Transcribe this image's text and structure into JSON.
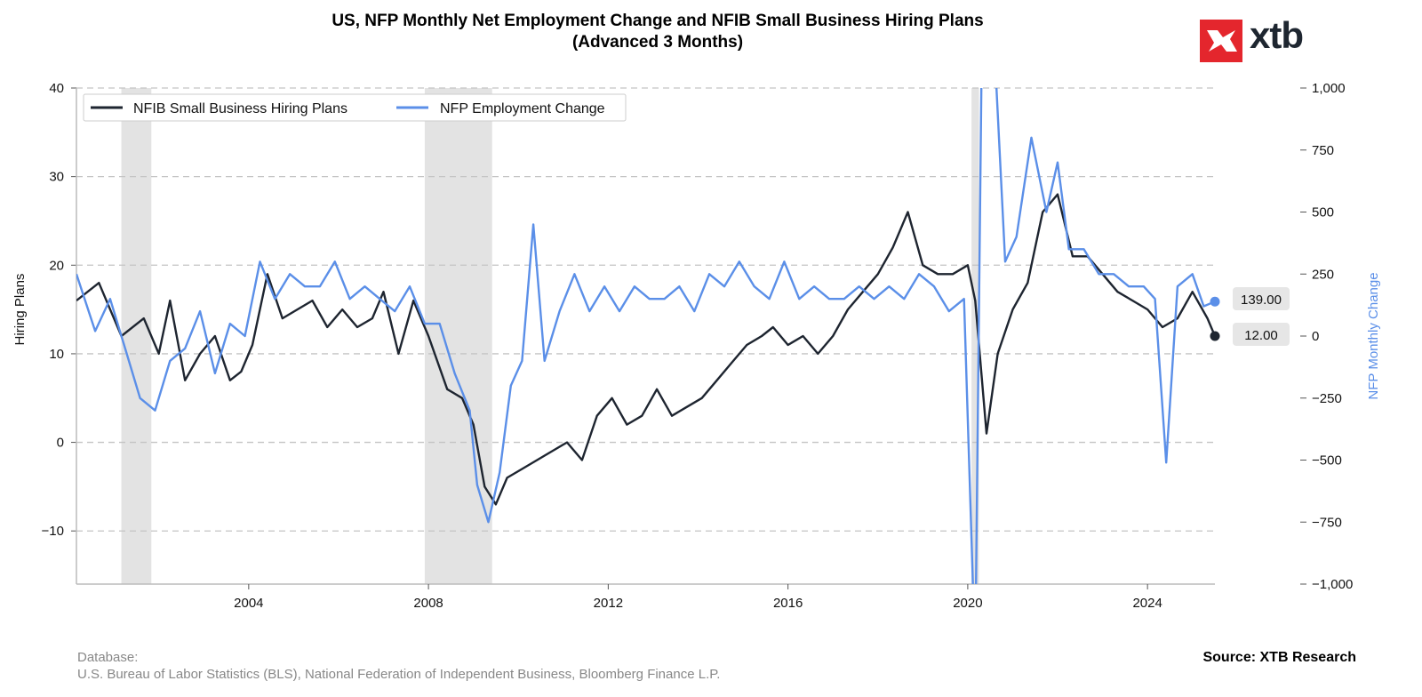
{
  "title": {
    "line1": "US, NFP Monthly Net Employment Change and NFIB Small Business Hiring Plans",
    "line2": "(Advanced 3 Months)"
  },
  "logo": {
    "text": "xtb",
    "color": "#e4262d"
  },
  "footer": {
    "database_label": "Database:",
    "database_sources": "U.S. Bureau of Labor Statistics (BLS), National Federation of Independent Business, Bloomberg Finance L.P.",
    "source": "Source: XTB Research"
  },
  "chart_data": {
    "type": "line",
    "x_range": [
      "2000-03",
      "2025-07"
    ],
    "x_ticks": [
      "2004",
      "2008",
      "2012",
      "2016",
      "2020",
      "2024"
    ],
    "left_axis": {
      "label": "Hiring Plans",
      "ylim": [
        -16,
        40
      ],
      "ticks": [
        "−10",
        "0",
        "10",
        "20",
        "30",
        "40"
      ]
    },
    "right_axis": {
      "label": "NFP Monthly Change",
      "ylim": [
        -1000,
        1000
      ],
      "ticks": [
        "−1,000",
        "−750",
        "−500",
        "−250",
        "0",
        "250",
        "500",
        "750",
        "1,000"
      ]
    },
    "grid": "horizontal dashed",
    "legend_position": "top-left",
    "shaded_periods": [
      [
        "2001-03",
        "2001-11"
      ],
      [
        "2007-12",
        "2009-06"
      ],
      [
        "2020-02",
        "2020-04"
      ]
    ],
    "series": [
      {
        "name": "NFIB Small Business Hiring Plans",
        "axis": "left",
        "color": "#1e2530",
        "last_value_label": "12.00",
        "points": [
          [
            "2000-03",
            16
          ],
          [
            "2000-09",
            18
          ],
          [
            "2001-03",
            12
          ],
          [
            "2001-09",
            14
          ],
          [
            "2002-01",
            10
          ],
          [
            "2002-04",
            16
          ],
          [
            "2002-08",
            7
          ],
          [
            "2002-12",
            10
          ],
          [
            "2003-04",
            12
          ],
          [
            "2003-08",
            7
          ],
          [
            "2003-11",
            8
          ],
          [
            "2004-02",
            11
          ],
          [
            "2004-06",
            19
          ],
          [
            "2004-10",
            14
          ],
          [
            "2005-02",
            15
          ],
          [
            "2005-06",
            16
          ],
          [
            "2005-10",
            13
          ],
          [
            "2006-02",
            15
          ],
          [
            "2006-06",
            13
          ],
          [
            "2006-10",
            14
          ],
          [
            "2007-01",
            17
          ],
          [
            "2007-05",
            10
          ],
          [
            "2007-09",
            16
          ],
          [
            "2008-01",
            12
          ],
          [
            "2008-06",
            6
          ],
          [
            "2008-10",
            5
          ],
          [
            "2009-01",
            2
          ],
          [
            "2009-04",
            -5
          ],
          [
            "2009-07",
            -7
          ],
          [
            "2009-10",
            -4
          ],
          [
            "2010-02",
            -3
          ],
          [
            "2010-06",
            -2
          ],
          [
            "2010-10",
            -1
          ],
          [
            "2011-02",
            0
          ],
          [
            "2011-06",
            -2
          ],
          [
            "2011-10",
            3
          ],
          [
            "2012-02",
            5
          ],
          [
            "2012-06",
            2
          ],
          [
            "2012-10",
            3
          ],
          [
            "2013-02",
            6
          ],
          [
            "2013-06",
            3
          ],
          [
            "2013-10",
            4
          ],
          [
            "2014-02",
            5
          ],
          [
            "2014-06",
            7
          ],
          [
            "2014-10",
            9
          ],
          [
            "2015-02",
            11
          ],
          [
            "2015-06",
            12
          ],
          [
            "2015-09",
            13
          ],
          [
            "2016-01",
            11
          ],
          [
            "2016-05",
            12
          ],
          [
            "2016-09",
            10
          ],
          [
            "2017-01",
            12
          ],
          [
            "2017-05",
            15
          ],
          [
            "2017-09",
            17
          ],
          [
            "2018-01",
            19
          ],
          [
            "2018-05",
            22
          ],
          [
            "2018-09",
            26
          ],
          [
            "2019-01",
            20
          ],
          [
            "2019-05",
            19
          ],
          [
            "2019-09",
            19
          ],
          [
            "2020-01",
            20
          ],
          [
            "2020-03",
            16
          ],
          [
            "2020-06",
            1
          ],
          [
            "2020-09",
            10
          ],
          [
            "2021-01",
            15
          ],
          [
            "2021-05",
            18
          ],
          [
            "2021-09",
            26
          ],
          [
            "2022-01",
            28
          ],
          [
            "2022-05",
            21
          ],
          [
            "2022-09",
            21
          ],
          [
            "2023-01",
            19
          ],
          [
            "2023-05",
            17
          ],
          [
            "2023-09",
            16
          ],
          [
            "2024-01",
            15
          ],
          [
            "2024-05",
            13
          ],
          [
            "2024-09",
            14
          ],
          [
            "2025-01",
            17
          ],
          [
            "2025-05",
            14
          ],
          [
            "2025-07",
            12
          ]
        ]
      },
      {
        "name": "NFP Employment Change",
        "axis": "right",
        "color": "#5b8fe8",
        "last_value_label": "139.00",
        "points": [
          [
            "2000-03",
            250
          ],
          [
            "2000-08",
            20
          ],
          [
            "2000-12",
            150
          ],
          [
            "2001-04",
            -50
          ],
          [
            "2001-08",
            -250
          ],
          [
            "2001-12",
            -300
          ],
          [
            "2002-04",
            -100
          ],
          [
            "2002-08",
            -50
          ],
          [
            "2002-12",
            100
          ],
          [
            "2003-04",
            -150
          ],
          [
            "2003-08",
            50
          ],
          [
            "2003-12",
            0
          ],
          [
            "2004-04",
            300
          ],
          [
            "2004-08",
            150
          ],
          [
            "2004-12",
            250
          ],
          [
            "2005-04",
            200
          ],
          [
            "2005-08",
            200
          ],
          [
            "2005-12",
            300
          ],
          [
            "2006-04",
            150
          ],
          [
            "2006-08",
            200
          ],
          [
            "2006-12",
            150
          ],
          [
            "2007-04",
            100
          ],
          [
            "2007-08",
            200
          ],
          [
            "2007-12",
            50
          ],
          [
            "2008-04",
            50
          ],
          [
            "2008-08",
            -150
          ],
          [
            "2008-12",
            -300
          ],
          [
            "2009-02",
            -600
          ],
          [
            "2009-05",
            -750
          ],
          [
            "2009-08",
            -550
          ],
          [
            "2009-11",
            -200
          ],
          [
            "2010-02",
            -100
          ],
          [
            "2010-05",
            450
          ],
          [
            "2010-08",
            -100
          ],
          [
            "2010-12",
            100
          ],
          [
            "2011-04",
            250
          ],
          [
            "2011-08",
            100
          ],
          [
            "2011-12",
            200
          ],
          [
            "2012-04",
            100
          ],
          [
            "2012-08",
            200
          ],
          [
            "2012-12",
            150
          ],
          [
            "2013-04",
            150
          ],
          [
            "2013-08",
            200
          ],
          [
            "2013-12",
            100
          ],
          [
            "2014-04",
            250
          ],
          [
            "2014-08",
            200
          ],
          [
            "2014-12",
            300
          ],
          [
            "2015-04",
            200
          ],
          [
            "2015-08",
            150
          ],
          [
            "2015-12",
            300
          ],
          [
            "2016-04",
            150
          ],
          [
            "2016-08",
            200
          ],
          [
            "2016-12",
            150
          ],
          [
            "2017-04",
            150
          ],
          [
            "2017-08",
            200
          ],
          [
            "2017-12",
            150
          ],
          [
            "2018-04",
            200
          ],
          [
            "2018-08",
            150
          ],
          [
            "2018-12",
            250
          ],
          [
            "2019-04",
            200
          ],
          [
            "2019-08",
            100
          ],
          [
            "2019-12",
            150
          ],
          [
            "2020-03",
            -1300
          ],
          [
            "2020-05",
            1500
          ],
          [
            "2020-08",
            1200
          ],
          [
            "2020-11",
            300
          ],
          [
            "2021-02",
            400
          ],
          [
            "2021-06",
            800
          ],
          [
            "2021-10",
            500
          ],
          [
            "2022-01",
            700
          ],
          [
            "2022-04",
            350
          ],
          [
            "2022-08",
            350
          ],
          [
            "2022-12",
            250
          ],
          [
            "2023-04",
            250
          ],
          [
            "2023-08",
            200
          ],
          [
            "2023-12",
            200
          ],
          [
            "2024-03",
            150
          ],
          [
            "2024-06",
            -510
          ],
          [
            "2024-09",
            200
          ],
          [
            "2025-01",
            250
          ],
          [
            "2025-04",
            120
          ],
          [
            "2025-07",
            139
          ]
        ]
      }
    ]
  }
}
